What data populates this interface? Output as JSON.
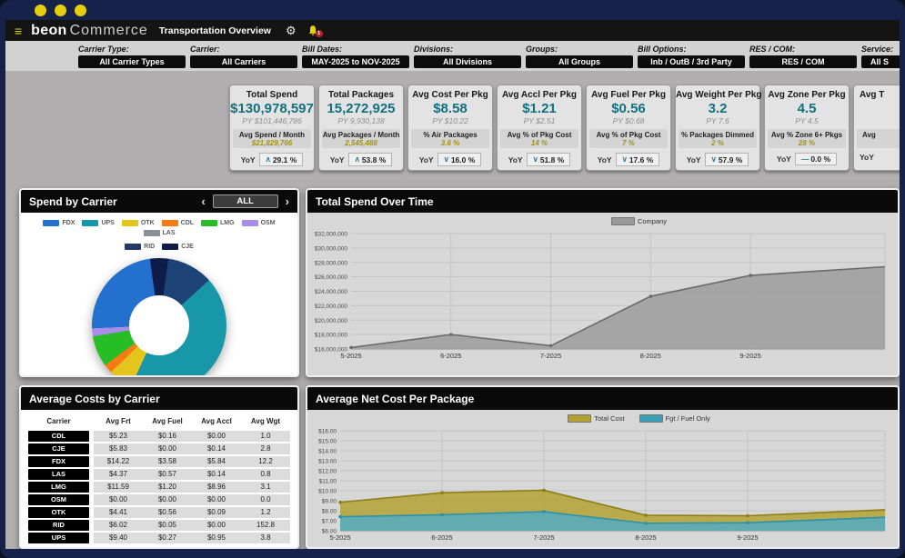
{
  "navbar": {
    "logo_bold": "beon",
    "logo_light": "Commerce",
    "page_title": "Transportation Overview",
    "bell_badge": "1"
  },
  "filters": [
    {
      "label": "Carrier Type:",
      "value": "All Carrier Types"
    },
    {
      "label": "Carrier:",
      "value": "All Carriers"
    },
    {
      "label": "Bill Dates:",
      "value": "MAY-2025 to NOV-2025"
    },
    {
      "label": "Divisions:",
      "value": "All Divisions"
    },
    {
      "label": "Groups:",
      "value": "All Groups"
    },
    {
      "label": "Bill Options:",
      "value": "Inb / OutB / 3rd Party"
    },
    {
      "label": "RES / COM:",
      "value": "RES / COM"
    },
    {
      "label": "Service:",
      "value": "All S",
      "clipped": true
    }
  ],
  "kpi_cards": [
    {
      "title": "Total Spend",
      "value": "$130,978,597",
      "py": "PY $101,446,786",
      "sub_label": "Avg Spend / Month",
      "sub_value": "$21,829,766",
      "yoy_label": "YoY",
      "yoy_dir": "up",
      "yoy_value": "29.1 %"
    },
    {
      "title": "Total Packages",
      "value": "15,272,925",
      "py": "PY 9,930,138",
      "sub_label": "Avg Packages / Month",
      "sub_value": "2,545,488",
      "yoy_label": "YoY",
      "yoy_dir": "up",
      "yoy_value": "53.8 %"
    },
    {
      "title": "Avg Cost Per Pkg",
      "value": "$8.58",
      "py": "PY $10.22",
      "sub_label": "% Air Packages",
      "sub_value": "3.6 %",
      "yoy_label": "YoY",
      "yoy_dir": "down",
      "yoy_value": "16.0 %"
    },
    {
      "title": "Avg Accl Per Pkg",
      "value": "$1.21",
      "py": "PY $2.51",
      "sub_label": "Avg % of Pkg Cost",
      "sub_value": "14 %",
      "yoy_label": "YoY",
      "yoy_dir": "down",
      "yoy_value": "51.8 %"
    },
    {
      "title": "Avg Fuel Per Pkg",
      "value": "$0.56",
      "py": "PY $0.68",
      "sub_label": "Avg % of Pkg Cost",
      "sub_value": "7 %",
      "yoy_label": "YoY",
      "yoy_dir": "down",
      "yoy_value": "17.6 %"
    },
    {
      "title": "Avg Weight Per Pkg",
      "value": "3.2",
      "py": "PY 7.6",
      "sub_label": "% Packages Dimmed",
      "sub_value": "2 %",
      "yoy_label": "YoY",
      "yoy_dir": "down",
      "yoy_value": "57.9 %"
    },
    {
      "title": "Avg Zone Per Pkg",
      "value": "4.5",
      "py": "PY 4.5",
      "sub_label": "Avg % Zone 6+ Pkgs",
      "sub_value": "28 %",
      "yoy_label": "YoY",
      "yoy_dir": "flat",
      "yoy_value": "0.0 %"
    },
    {
      "title": "Avg T",
      "value": "",
      "py": "",
      "sub_label": "Avg",
      "sub_value": "",
      "yoy_label": "YoY",
      "yoy_dir": "",
      "yoy_value": "",
      "clipped": true
    }
  ],
  "panels": {
    "spend_by_carrier": {
      "title": "Spend by Carrier",
      "prev": "‹",
      "all_button": "ALL",
      "next": "›",
      "legend": [
        {
          "label": "FDX",
          "color": "#2470cf"
        },
        {
          "label": "UPS",
          "color": "#1897a8"
        },
        {
          "label": "OTK",
          "color": "#e3c51c"
        },
        {
          "label": "CDL",
          "color": "#f77b15"
        },
        {
          "label": "LMG",
          "color": "#27bd27"
        },
        {
          "label": "OSM",
          "color": "#a88ee8"
        },
        {
          "label": "LAS",
          "color": "#8a9097"
        },
        {
          "label": "RID",
          "color": "#233a66",
          "break_before": true
        },
        {
          "label": "CJE",
          "color": "#0e1c4a"
        }
      ]
    },
    "total_spend": {
      "title": "Total Spend Over Time",
      "legend": [
        {
          "label": "Company",
          "color": "#9a9a9a"
        }
      ]
    },
    "cost_table": {
      "title": "Average Costs by Carrier",
      "headers": [
        "Carrier",
        "Avg Frt",
        "Avg Fuel",
        "Avg Accl",
        "Avg Wgt"
      ],
      "rows": [
        {
          "carrier": "CDL",
          "avg_frt": "$5.23",
          "avg_fuel": "$0.16",
          "avg_accl": "$0.00",
          "avg_wgt": "1.0"
        },
        {
          "carrier": "CJE",
          "avg_frt": "$5.83",
          "avg_fuel": "$0.00",
          "avg_accl": "$0.14",
          "avg_wgt": "2.8"
        },
        {
          "carrier": "FDX",
          "avg_frt": "$14.22",
          "avg_fuel": "$3.58",
          "avg_accl": "$5.84",
          "avg_wgt": "12.2"
        },
        {
          "carrier": "LAS",
          "avg_frt": "$4.37",
          "avg_fuel": "$0.57",
          "avg_accl": "$0.14",
          "avg_wgt": "0.8"
        },
        {
          "carrier": "LMG",
          "avg_frt": "$11.59",
          "avg_fuel": "$1.20",
          "avg_accl": "$8.96",
          "avg_wgt": "3.1"
        },
        {
          "carrier": "OSM",
          "avg_frt": "$0.00",
          "avg_fuel": "$0.00",
          "avg_accl": "$0.00",
          "avg_wgt": "0.0"
        },
        {
          "carrier": "OTK",
          "avg_frt": "$4.41",
          "avg_fuel": "$0.56",
          "avg_accl": "$0.09",
          "avg_wgt": "1.2"
        },
        {
          "carrier": "RID",
          "avg_frt": "$6.02",
          "avg_fuel": "$0.05",
          "avg_accl": "$0.00",
          "avg_wgt": "152.8"
        },
        {
          "carrier": "UPS",
          "avg_frt": "$9.40",
          "avg_fuel": "$0.27",
          "avg_accl": "$0.95",
          "avg_wgt": "3.8"
        }
      ]
    },
    "avg_net_cost": {
      "title": "Average Net Cost Per Package",
      "legend": [
        {
          "label": "Total Cost",
          "color": "#b3a133"
        },
        {
          "label": "Fgt / Fuel Only",
          "color": "#3ba0b5"
        }
      ]
    }
  },
  "chart_data": [
    {
      "name": "spend_by_carrier_donut",
      "type": "pie",
      "title": "Spend by Carrier",
      "hole": 0.44,
      "start_deg": -8,
      "slices": [
        {
          "label": "CJE",
          "pct": 4.4,
          "color": "#0e1c4a"
        },
        {
          "label": "RID",
          "pct": 11.1,
          "color": "#1d4376"
        },
        {
          "label": "UPS",
          "pct": 43.6,
          "color": "#1897a8"
        },
        {
          "label": "OTK",
          "pct": 5.8,
          "color": "#e3c51c"
        },
        {
          "label": "CDL",
          "pct": 2.2,
          "color": "#f77b15"
        },
        {
          "label": "LMG",
          "pct": 7.5,
          "color": "#27bd27"
        },
        {
          "label": "OSM",
          "pct": 1.9,
          "color": "#a88ee8"
        },
        {
          "label": "FDX",
          "pct": 23.5,
          "color": "#2470cf"
        },
        {
          "label": "LAS",
          "pct": 0,
          "color": "#8a9097"
        }
      ]
    },
    {
      "name": "total_spend_over_time",
      "type": "area",
      "title": "Total Spend Over Time",
      "x": [
        "5-2025",
        "6-2025",
        "7-2025",
        "8-2025",
        "9-2025"
      ],
      "ylim": [
        16000000,
        32000000
      ],
      "yticks": [
        {
          "v": 32000000,
          "label": "$32,000,000"
        },
        {
          "v": 30000000,
          "label": "$30,000,000"
        },
        {
          "v": 28000000,
          "label": "$28,000,000"
        },
        {
          "v": 26000000,
          "label": "$26,000,000"
        },
        {
          "v": 24000000,
          "label": "$24,000,000"
        },
        {
          "v": 22000000,
          "label": "$22,000,000"
        },
        {
          "v": 20000000,
          "label": "$20,000,000"
        },
        {
          "v": 18000000,
          "label": "$18,000,000"
        },
        {
          "v": 16000000,
          "label": "$16,000,000"
        }
      ],
      "series": [
        {
          "name": "Company",
          "values": [
            16200000,
            18000000,
            16450000,
            23300000,
            26200000
          ],
          "edge_value": 27400000,
          "line": "#6a6a6a",
          "fill": "#a0a0a0"
        }
      ]
    },
    {
      "name": "avg_net_cost_per_package",
      "type": "area",
      "title": "Average Net Cost Per Package",
      "x": [
        "5-2025",
        "6-2025",
        "7-2025",
        "8-2025",
        "9-2025"
      ],
      "ylim": [
        6,
        16
      ],
      "yticks": [
        {
          "v": 16,
          "label": "$16.00"
        },
        {
          "v": 15,
          "label": "$15.00"
        },
        {
          "v": 14,
          "label": "$14.00"
        },
        {
          "v": 13,
          "label": "$13.00"
        },
        {
          "v": 12,
          "label": "$12.00"
        },
        {
          "v": 11,
          "label": "$11.00"
        },
        {
          "v": 10,
          "label": "$10.00"
        },
        {
          "v": 9,
          "label": "$9.00"
        },
        {
          "v": 8,
          "label": "$8.00"
        },
        {
          "v": 7,
          "label": "$7.00"
        },
        {
          "v": 6,
          "label": "$6.00"
        }
      ],
      "series": [
        {
          "name": "Total Cost",
          "values": [
            8.85,
            9.8,
            10.05,
            7.55,
            7.5
          ],
          "edge_value": 8.1,
          "line": "#8f7e14",
          "fill": "#b5a53e"
        },
        {
          "name": "Fgt / Fuel Only",
          "values": [
            7.4,
            7.6,
            7.9,
            6.75,
            6.8
          ],
          "edge_value": 7.35,
          "line": "#2a93a9",
          "fill": "#58abbc"
        }
      ]
    }
  ]
}
